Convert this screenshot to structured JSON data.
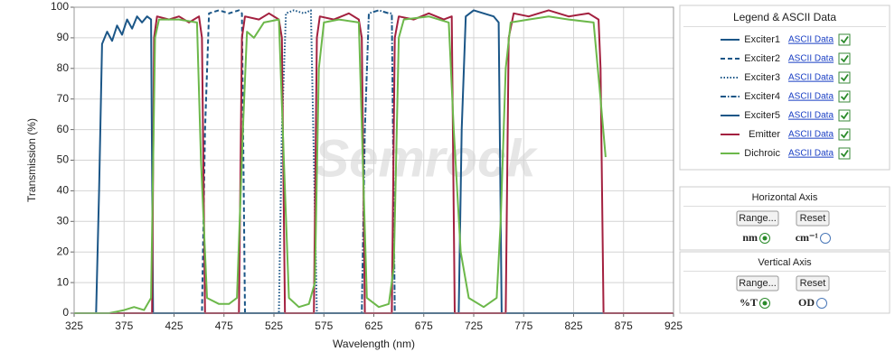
{
  "chart_data": {
    "type": "line",
    "xlabel": "Wavelength (nm)",
    "ylabel": "Transmission (%)",
    "watermark": "Semrock",
    "xlim": [
      325,
      925
    ],
    "xticks": [
      325,
      375,
      425,
      475,
      525,
      575,
      625,
      675,
      725,
      775,
      825,
      875,
      925
    ],
    "ylim": [
      0,
      100
    ],
    "yticks": [
      0,
      10,
      20,
      30,
      40,
      50,
      60,
      70,
      80,
      90,
      100
    ],
    "grid": true,
    "series": [
      {
        "name": "Exciter1",
        "color": "#1b5687",
        "dash": "solid",
        "x": [
          325,
          347,
          350,
          353,
          358,
          363,
          368,
          373,
          378,
          383,
          388,
          393,
          398,
          402,
          404,
          925
        ],
        "values": [
          0,
          0,
          40,
          88,
          92,
          89,
          94,
          91,
          96,
          93,
          97,
          95,
          97,
          96,
          0,
          0
        ]
      },
      {
        "name": "Exciter2",
        "color": "#1b5687",
        "dash": "dashed",
        "x": [
          325,
          453,
          456,
          460,
          470,
          480,
          490,
          493,
          496,
          925
        ],
        "values": [
          0,
          0,
          60,
          98,
          99,
          98,
          99,
          98,
          0,
          0
        ]
      },
      {
        "name": "Exciter3",
        "color": "#1b5687",
        "dash": "dotted",
        "x": [
          325,
          530,
          533,
          537,
          545,
          555,
          562,
          565,
          568,
          925
        ],
        "values": [
          0,
          0,
          60,
          98,
          99,
          98,
          99,
          50,
          0,
          0
        ]
      },
      {
        "name": "Exciter4",
        "color": "#1b5687",
        "dash": "dashdot",
        "x": [
          325,
          613,
          616,
          620,
          630,
          640,
          643,
          646,
          925
        ],
        "values": [
          0,
          0,
          60,
          98,
          99,
          98,
          98,
          0,
          0
        ]
      },
      {
        "name": "Exciter5",
        "color": "#1b5687",
        "dash": "solid",
        "x": [
          325,
          710,
          713,
          717,
          725,
          735,
          745,
          750,
          753,
          925
        ],
        "values": [
          0,
          0,
          60,
          97,
          99,
          98,
          97,
          95,
          0,
          0
        ]
      },
      {
        "name": "Emitter",
        "color": "#a3203f",
        "dash": "solid",
        "x": [
          325,
          403,
          405,
          408,
          420,
          430,
          440,
          450,
          453,
          456,
          490,
          493,
          496,
          510,
          520,
          530,
          533,
          536,
          565,
          568,
          571,
          585,
          600,
          610,
          613,
          616,
          643,
          646,
          650,
          665,
          680,
          695,
          703,
          706,
          757,
          760,
          765,
          780,
          800,
          820,
          840,
          850,
          852,
          855,
          925
        ],
        "values": [
          0,
          0,
          90,
          97,
          96,
          97,
          95,
          97,
          90,
          0,
          0,
          90,
          97,
          96,
          98,
          96,
          90,
          0,
          0,
          90,
          97,
          96,
          98,
          96,
          90,
          0,
          0,
          90,
          97,
          96,
          98,
          96,
          97,
          0,
          0,
          90,
          98,
          97,
          99,
          97,
          98,
          96,
          80,
          0,
          0
        ]
      },
      {
        "name": "Dichroic",
        "color": "#6cb84a",
        "dash": "solid",
        "x": [
          325,
          360,
          375,
          385,
          395,
          402,
          406,
          410,
          430,
          448,
          452,
          458,
          470,
          480,
          488,
          494,
          498,
          505,
          515,
          530,
          535,
          540,
          550,
          560,
          566,
          570,
          575,
          590,
          610,
          614,
          618,
          630,
          640,
          645,
          650,
          655,
          680,
          700,
          705,
          712,
          720,
          735,
          748,
          752,
          757,
          762,
          780,
          800,
          820,
          845,
          852,
          857
        ],
        "values": [
          0,
          0,
          1,
          2,
          1,
          5,
          90,
          96,
          96,
          95,
          50,
          5,
          3,
          3,
          5,
          60,
          92,
          90,
          95,
          96,
          50,
          5,
          2,
          3,
          10,
          80,
          95,
          96,
          95,
          50,
          5,
          2,
          3,
          15,
          90,
          96,
          97,
          95,
          60,
          20,
          5,
          2,
          5,
          30,
          80,
          95,
          96,
          97,
          96,
          95,
          70,
          51
        ]
      }
    ]
  },
  "legend_panel": {
    "title": "Legend & ASCII Data",
    "link": "ASCII Data"
  },
  "horizontal_axis": {
    "title": "Horizontal Axis",
    "buttons": [
      "Range...",
      "Reset"
    ],
    "options": [
      {
        "label": "nm",
        "selected": true
      },
      {
        "label": "cm⁻¹",
        "selected": false
      }
    ]
  },
  "vertical_axis": {
    "title": "Vertical  Axis",
    "buttons": [
      "Range...",
      "Reset"
    ],
    "options": [
      {
        "label": "%T",
        "selected": true
      },
      {
        "label": "OD",
        "selected": false
      }
    ]
  }
}
